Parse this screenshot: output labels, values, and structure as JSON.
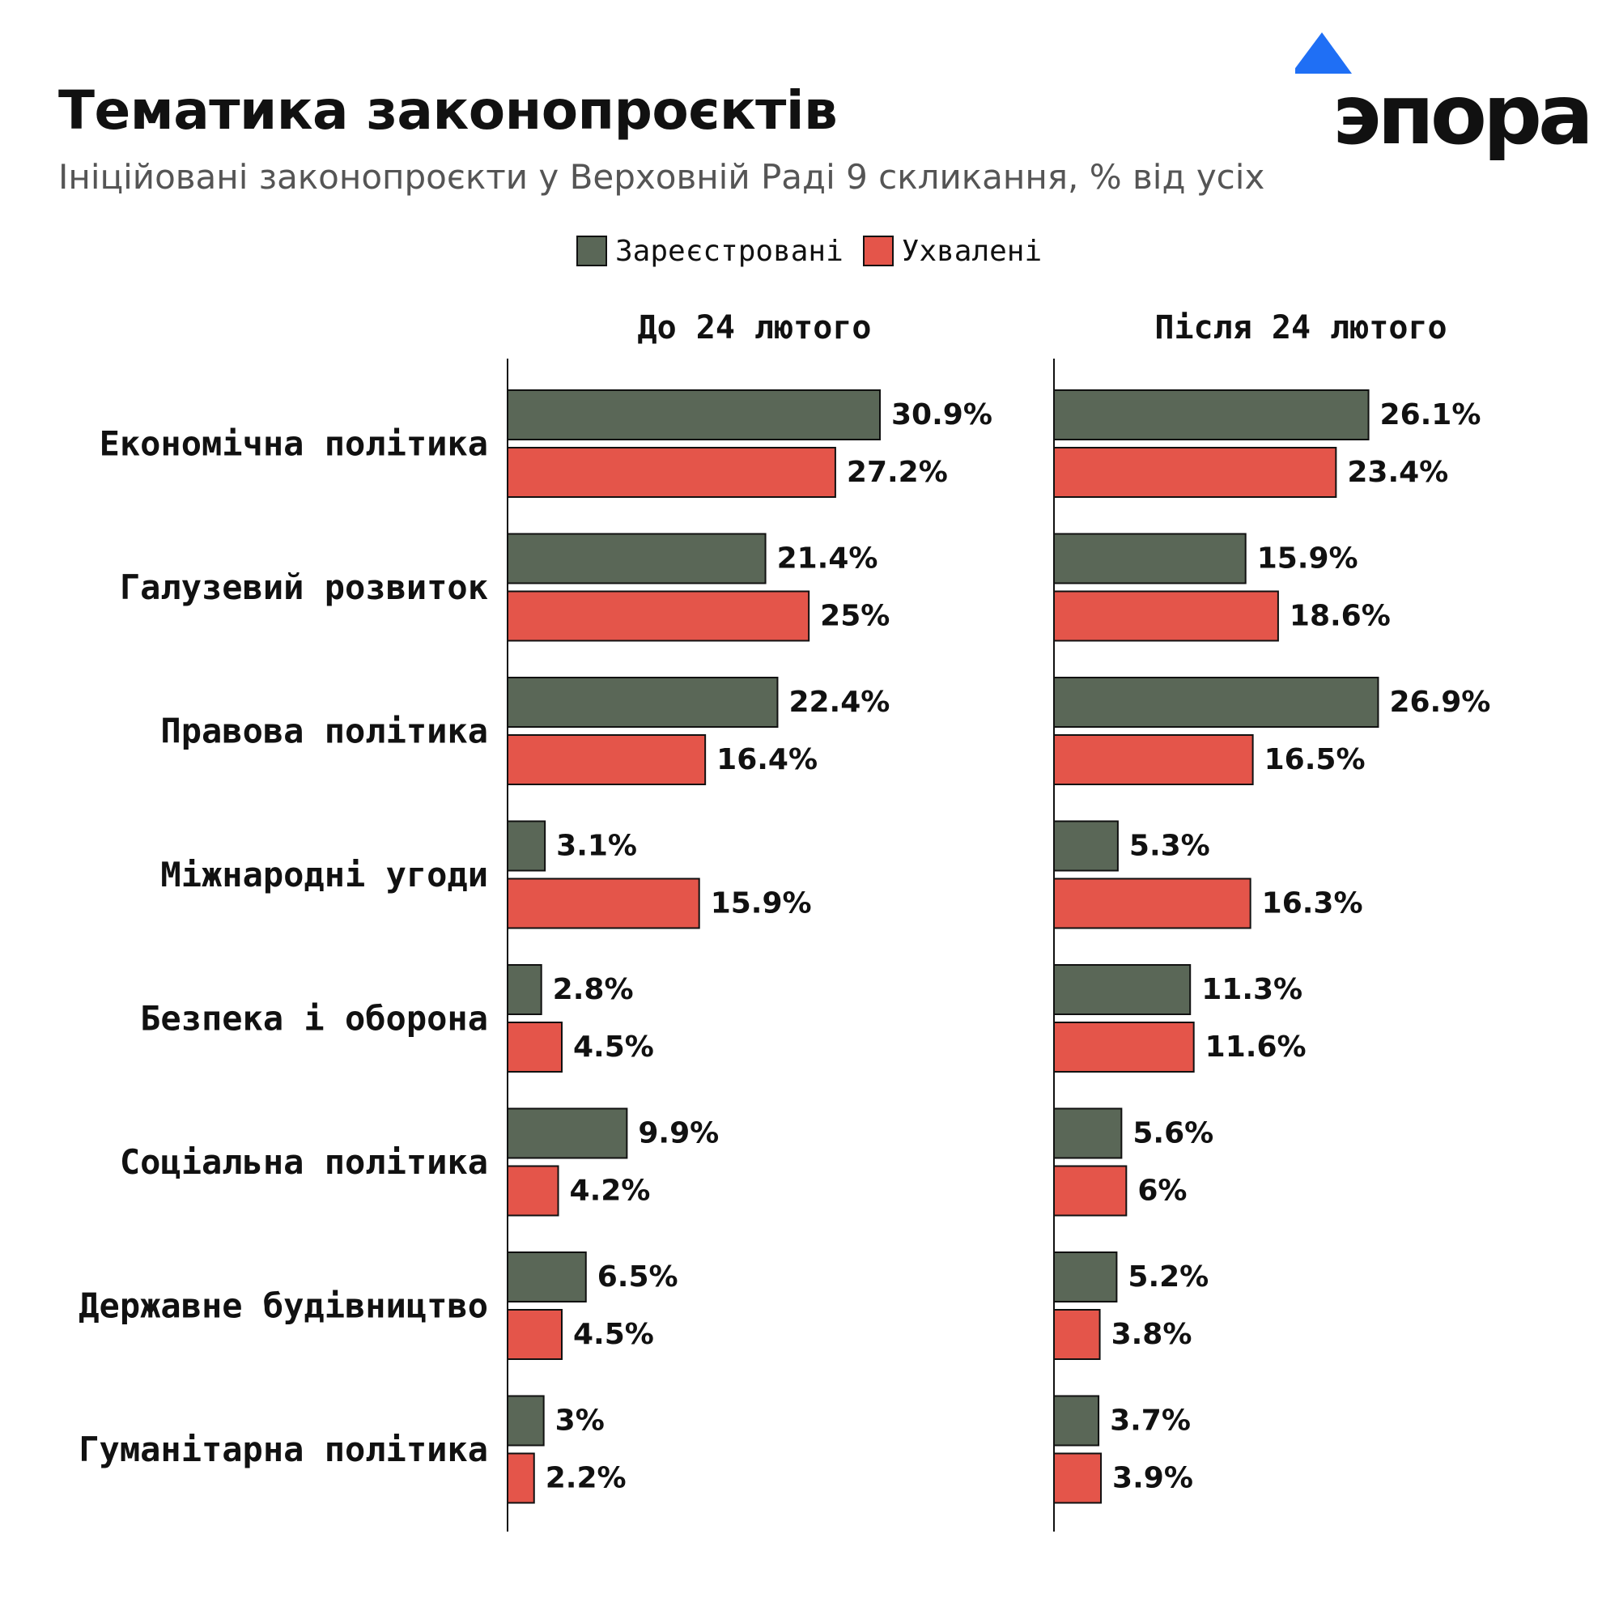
{
  "title": "Тематика законопроєктів",
  "subtitle": "Ініційовані законопроєкти у Верховній Раді 9 скликання, % від усіх",
  "logo": {
    "text": "эпора",
    "icon": "triangle-icon"
  },
  "colors": {
    "registered": "#5a6757",
    "approved": "#e4554a",
    "text": "#111111",
    "subtitle": "#555555",
    "logo_triangle": "#1f6ff5"
  },
  "chart_data": {
    "type": "bar",
    "orientation": "horizontal",
    "title": "Тематика законопроєктів",
    "subtitle": "Ініційовані законопроєкти у Верховній Раді 9 скликання, % від усіх",
    "legend": {
      "position": "top-center",
      "entries": [
        "Зареєстровані",
        "Ухвалені"
      ]
    },
    "categories": [
      "Економічна політика",
      "Галузевий розвиток",
      "Правова політика",
      "Міжнародні угоди",
      "Безпека і оборона",
      "Соціальна політика",
      "Державне будівництво",
      "Гуманітарна політика"
    ],
    "value_unit": "%",
    "xlim": [
      0,
      31
    ],
    "panels": [
      {
        "title": "До 24 лютого",
        "series": [
          {
            "name": "Зареєстровані",
            "values": [
              30.9,
              21.4,
              22.4,
              3.1,
              2.8,
              9.9,
              6.5,
              3
            ],
            "labels": [
              "30.9%",
              "21.4%",
              "22.4%",
              "3.1%",
              "2.8%",
              "9.9%",
              "6.5%",
              "3%"
            ]
          },
          {
            "name": "Ухвалені",
            "values": [
              27.2,
              25,
              16.4,
              15.9,
              4.5,
              4.2,
              4.5,
              2.2
            ],
            "labels": [
              "27.2%",
              "25%",
              "16.4%",
              "15.9%",
              "4.5%",
              "4.2%",
              "4.5%",
              "2.2%"
            ]
          }
        ]
      },
      {
        "title": "Після 24 лютого",
        "series": [
          {
            "name": "Зареєстровані",
            "values": [
              26.1,
              15.9,
              26.9,
              5.3,
              11.3,
              5.6,
              5.2,
              3.7
            ],
            "labels": [
              "26.1%",
              "15.9%",
              "26.9%",
              "5.3%",
              "11.3%",
              "5.6%",
              "5.2%",
              "3.7%"
            ]
          },
          {
            "name": "Ухвалені",
            "values": [
              23.4,
              18.6,
              16.5,
              16.3,
              11.6,
              6,
              3.8,
              3.9
            ],
            "labels": [
              "23.4%",
              "18.6%",
              "16.5%",
              "16.3%",
              "11.6%",
              "6%",
              "3.8%",
              "3.9%"
            ]
          }
        ]
      }
    ]
  }
}
